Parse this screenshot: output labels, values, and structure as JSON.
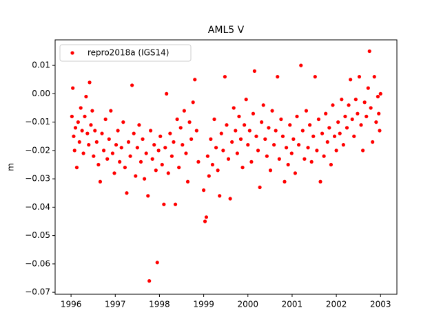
{
  "chart_data": {
    "type": "scatter",
    "title": "AML5 V",
    "y_label": "m",
    "legend_position": "upper left",
    "series": [
      {
        "name": "repro2018a (IGS14)",
        "color": "#ff0000",
        "x": [
          1996.02,
          1996.04,
          1996.06,
          1996.08,
          1996.1,
          1996.13,
          1996.16,
          1996.19,
          1996.22,
          1996.25,
          1996.28,
          1996.31,
          1996.34,
          1996.37,
          1996.4,
          1996.42,
          1996.45,
          1996.48,
          1996.51,
          1996.54,
          1996.58,
          1996.62,
          1996.66,
          1996.7,
          1996.74,
          1996.78,
          1996.82,
          1996.86,
          1996.9,
          1996.94,
          1996.98,
          1997.02,
          1997.06,
          1997.1,
          1997.14,
          1997.18,
          1997.22,
          1997.26,
          1997.3,
          1997.34,
          1997.38,
          1997.42,
          1997.46,
          1997.5,
          1997.54,
          1997.58,
          1997.62,
          1997.66,
          1997.7,
          1997.74,
          1997.77,
          1997.8,
          1997.84,
          1997.88,
          1997.92,
          1997.95,
          1997.98,
          1998.02,
          1998.06,
          1998.1,
          1998.13,
          1998.16,
          1998.2,
          1998.24,
          1998.28,
          1998.32,
          1998.36,
          1998.4,
          1998.44,
          1998.48,
          1998.52,
          1998.56,
          1998.6,
          1998.64,
          1998.68,
          1998.72,
          1998.76,
          1998.8,
          1998.84,
          1998.88,
          1999.0,
          1999.03,
          1999.06,
          1999.09,
          1999.12,
          1999.16,
          1999.2,
          1999.24,
          1999.28,
          1999.32,
          1999.36,
          1999.4,
          1999.44,
          1999.48,
          1999.52,
          1999.56,
          1999.6,
          1999.64,
          1999.68,
          1999.72,
          1999.76,
          1999.8,
          1999.84,
          1999.88,
          1999.92,
          1999.96,
          2000.0,
          2000.04,
          2000.08,
          2000.12,
          2000.15,
          2000.19,
          2000.23,
          2000.27,
          2000.31,
          2000.35,
          2000.39,
          2000.43,
          2000.47,
          2000.51,
          2000.55,
          2000.59,
          2000.63,
          2000.67,
          2000.71,
          2000.75,
          2000.79,
          2000.83,
          2000.87,
          2000.91,
          2000.95,
          2000.99,
          2001.03,
          2001.07,
          2001.11,
          2001.15,
          2001.2,
          2001.24,
          2001.28,
          2001.32,
          2001.36,
          2001.4,
          2001.44,
          2001.48,
          2001.52,
          2001.56,
          2001.6,
          2001.64,
          2001.68,
          2001.72,
          2001.76,
          2001.8,
          2001.84,
          2001.88,
          2001.92,
          2001.96,
          2002.0,
          2002.04,
          2002.08,
          2002.12,
          2002.16,
          2002.2,
          2002.24,
          2002.28,
          2002.32,
          2002.36,
          2002.4,
          2002.44,
          2002.48,
          2002.52,
          2002.56,
          2002.6,
          2002.64,
          2002.68,
          2002.72,
          2002.75,
          2002.78,
          2002.82,
          2002.86,
          2002.9,
          2002.94,
          2002.98,
          2003.0,
          2002.96
        ],
        "values": [
          -0.008,
          0.002,
          -0.015,
          -0.02,
          -0.012,
          -0.026,
          -0.01,
          -0.017,
          -0.005,
          -0.013,
          -0.021,
          -0.008,
          -0.001,
          -0.014,
          -0.018,
          0.004,
          -0.011,
          -0.006,
          -0.022,
          -0.013,
          -0.017,
          -0.025,
          -0.031,
          -0.014,
          -0.02,
          -0.009,
          -0.023,
          -0.016,
          -0.006,
          -0.021,
          -0.028,
          -0.018,
          -0.013,
          -0.024,
          -0.019,
          -0.01,
          -0.026,
          -0.035,
          -0.017,
          -0.022,
          0.003,
          -0.014,
          -0.029,
          -0.019,
          -0.011,
          -0.024,
          -0.016,
          -0.03,
          -0.021,
          -0.036,
          -0.066,
          -0.013,
          -0.023,
          -0.018,
          -0.027,
          -0.0595,
          -0.02,
          -0.015,
          -0.025,
          -0.039,
          -0.019,
          0.0,
          -0.028,
          -0.014,
          -0.022,
          -0.017,
          -0.039,
          -0.009,
          -0.026,
          -0.012,
          -0.018,
          -0.006,
          -0.021,
          -0.031,
          -0.01,
          -0.016,
          -0.003,
          0.005,
          -0.013,
          -0.024,
          -0.034,
          -0.045,
          -0.0435,
          -0.022,
          -0.029,
          -0.016,
          -0.025,
          -0.009,
          -0.019,
          -0.027,
          -0.036,
          -0.014,
          -0.02,
          0.006,
          -0.011,
          -0.023,
          -0.037,
          -0.017,
          -0.005,
          -0.013,
          -0.021,
          -0.008,
          -0.016,
          -0.026,
          -0.011,
          -0.002,
          -0.018,
          -0.013,
          -0.024,
          -0.007,
          0.008,
          -0.015,
          -0.02,
          -0.033,
          -0.01,
          -0.004,
          -0.016,
          -0.022,
          -0.012,
          -0.027,
          -0.006,
          -0.018,
          -0.013,
          0.006,
          -0.023,
          -0.009,
          -0.015,
          -0.031,
          -0.019,
          -0.025,
          -0.011,
          -0.021,
          -0.016,
          -0.028,
          -0.008,
          -0.018,
          0.01,
          -0.013,
          -0.023,
          -0.006,
          -0.019,
          -0.011,
          -0.024,
          -0.015,
          0.006,
          -0.02,
          -0.009,
          -0.031,
          -0.014,
          -0.022,
          -0.007,
          -0.017,
          -0.012,
          -0.025,
          -0.004,
          -0.015,
          -0.02,
          -0.01,
          -0.014,
          -0.002,
          -0.018,
          -0.008,
          -0.012,
          -0.004,
          0.005,
          -0.009,
          -0.015,
          -0.002,
          -0.007,
          0.006,
          -0.011,
          -0.02,
          -0.003,
          -0.008,
          0.002,
          0.015,
          -0.005,
          -0.017,
          0.006,
          -0.01,
          -0.001,
          -0.013,
          0.0,
          -0.007
        ]
      }
    ],
    "xlim": [
      1995.64,
      2003.37
    ],
    "xticks": [
      1996,
      1997,
      1998,
      1999,
      2000,
      2001,
      2002,
      2003
    ],
    "ylim": [
      -0.0707,
      0.019
    ],
    "yticks": [
      0.01,
      {
        "value": 0,
        "label": "0.00"
      },
      {
        "value": -0.01,
        "label": "−0.01"
      },
      {
        "value": -0.02,
        "label": "−0.02"
      },
      {
        "value": -0.03,
        "label": "−0.03"
      },
      {
        "value": -0.04,
        "label": "−0.04"
      },
      {
        "value": -0.05,
        "label": "−0.05"
      },
      {
        "value": -0.06,
        "label": "−0.06"
      },
      {
        "value": -0.07,
        "label": "−0.07"
      }
    ]
  }
}
